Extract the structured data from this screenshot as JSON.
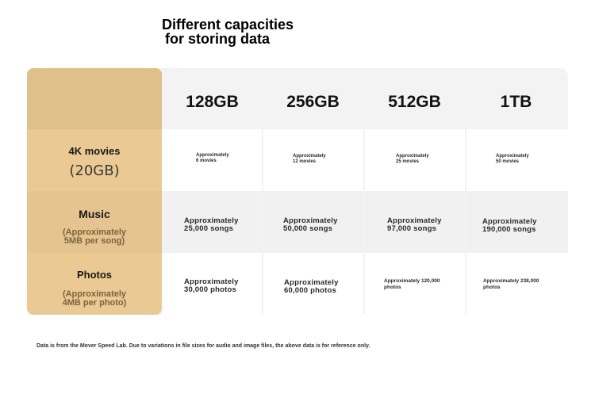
{
  "title": {
    "line1": "Different capacities",
    "line2": "for storing data"
  },
  "columns": [
    "128GB",
    "256GB",
    "512GB",
    "1TB"
  ],
  "rows": [
    {
      "label": "4K movies",
      "sublabel": "(20GB)",
      "values": [
        "Approximately\n6 movies",
        "Approximately\n12 movies",
        "Approximately\n25 movies",
        "Approximately\n50 movies"
      ]
    },
    {
      "label": "Music",
      "sublabel": "(Approximately\n5MB per song)",
      "values": [
        "Approximately\n25,000 songs",
        "Approximately\n50,000 songs",
        "Approximately\n97,000 songs",
        "Approximately\n190,000 songs"
      ]
    },
    {
      "label": "Photos",
      "sublabel": "(Approximately\n4MB per photo)",
      "values": [
        "Approximately\n30,000 photos",
        "Approximately\n60,000 photos",
        "Approximately 120,000\nphotos",
        "Approximately 238,000\nphotos"
      ]
    }
  ],
  "footnote": "Data is from the Mover Speed Lab. Due to variations in file sizes for audio and image files, the above data is for reference only.",
  "colors": {
    "label_column": "#eac993",
    "header_band": "#f3f3f3"
  }
}
